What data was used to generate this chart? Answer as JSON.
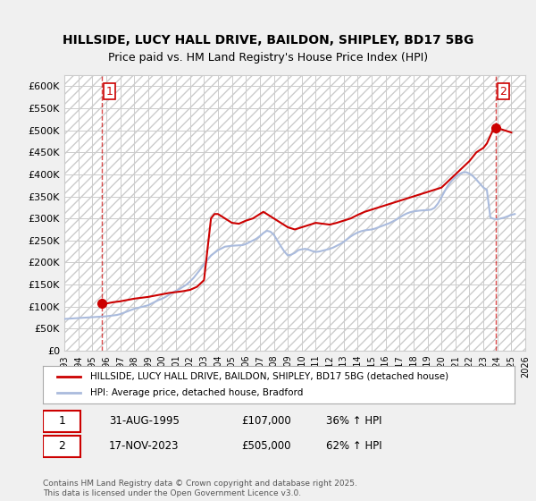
{
  "title_line1": "HILLSIDE, LUCY HALL DRIVE, BAILDON, SHIPLEY, BD17 5BG",
  "title_line2": "Price paid vs. HM Land Registry's House Price Index (HPI)",
  "ylabel": "",
  "ylim": [
    0,
    625000
  ],
  "yticks": [
    0,
    50000,
    100000,
    150000,
    200000,
    250000,
    300000,
    350000,
    400000,
    450000,
    500000,
    550000,
    600000
  ],
  "ytick_labels": [
    "£0",
    "£50K",
    "£100K",
    "£150K",
    "£200K",
    "£250K",
    "£300K",
    "£350K",
    "£400K",
    "£450K",
    "£500K",
    "£550K",
    "£600K"
  ],
  "background_color": "#f0f0f0",
  "plot_bg_color": "#ffffff",
  "grid_color": "#cccccc",
  "hpi_color": "#aaaadd",
  "price_color": "#cc0000",
  "marker1_date_idx": 0,
  "marker2_date_idx": -1,
  "annotation1_label": "1",
  "annotation2_label": "2",
  "legend_label_price": "HILLSIDE, LUCY HALL DRIVE, BAILDON, SHIPLEY, BD17 5BG (detached house)",
  "legend_label_hpi": "HPI: Average price, detached house, Bradford",
  "note1": "1    31-AUG-1995    £107,000    36% ↑ HPI",
  "note2": "2    17-NOV-2023    £505,000    62% ↑ HPI",
  "footer": "Contains HM Land Registry data © Crown copyright and database right 2025.\nThis data is licensed under the Open Government Licence v3.0.",
  "price_dates": [
    1995.66,
    2023.88
  ],
  "price_values": [
    107000,
    505000
  ],
  "hpi_series_x": [
    1993,
    1993.25,
    1993.5,
    1993.75,
    1994,
    1994.25,
    1994.5,
    1994.75,
    1995,
    1995.25,
    1995.5,
    1995.75,
    1996,
    1996.25,
    1996.5,
    1996.75,
    1997,
    1997.25,
    1997.5,
    1997.75,
    1998,
    1998.25,
    1998.5,
    1998.75,
    1999,
    1999.25,
    1999.5,
    1999.75,
    2000,
    2000.25,
    2000.5,
    2000.75,
    2001,
    2001.25,
    2001.5,
    2001.75,
    2002,
    2002.25,
    2002.5,
    2002.75,
    2003,
    2003.25,
    2003.5,
    2003.75,
    2004,
    2004.25,
    2004.5,
    2004.75,
    2005,
    2005.25,
    2005.5,
    2005.75,
    2006,
    2006.25,
    2006.5,
    2006.75,
    2007,
    2007.25,
    2007.5,
    2007.75,
    2008,
    2008.25,
    2008.5,
    2008.75,
    2009,
    2009.25,
    2009.5,
    2009.75,
    2010,
    2010.25,
    2010.5,
    2010.75,
    2011,
    2011.25,
    2011.5,
    2011.75,
    2012,
    2012.25,
    2012.5,
    2012.75,
    2013,
    2013.25,
    2013.5,
    2013.75,
    2014,
    2014.25,
    2014.5,
    2014.75,
    2015,
    2015.25,
    2015.5,
    2015.75,
    2016,
    2016.25,
    2016.5,
    2016.75,
    2017,
    2017.25,
    2017.5,
    2017.75,
    2018,
    2018.25,
    2018.5,
    2018.75,
    2019,
    2019.25,
    2019.5,
    2019.75,
    2020,
    2020.25,
    2020.5,
    2020.75,
    2021,
    2021.25,
    2021.5,
    2021.75,
    2022,
    2022.25,
    2022.5,
    2022.75,
    2023,
    2023.25,
    2023.5,
    2023.75,
    2024,
    2024.25,
    2024.5,
    2024.75,
    2025,
    2025.25
  ],
  "hpi_series_y": [
    72000,
    72500,
    73000,
    73500,
    74000,
    74500,
    75000,
    75500,
    76000,
    76500,
    77000,
    77500,
    78000,
    79000,
    80000,
    81000,
    83000,
    86000,
    89000,
    92000,
    95000,
    97000,
    99000,
    101000,
    103000,
    107000,
    111000,
    115000,
    118000,
    122000,
    127000,
    132000,
    136000,
    140000,
    145000,
    150000,
    157000,
    165000,
    175000,
    185000,
    196000,
    206000,
    216000,
    222000,
    228000,
    232000,
    236000,
    237000,
    238000,
    238500,
    239000,
    239500,
    242000,
    246000,
    250000,
    254000,
    260000,
    267000,
    272000,
    270000,
    263000,
    250000,
    237000,
    225000,
    216000,
    218000,
    222000,
    228000,
    230000,
    231000,
    229000,
    226000,
    224000,
    225000,
    227000,
    229000,
    231000,
    234000,
    238000,
    242000,
    247000,
    253000,
    259000,
    264000,
    268000,
    271000,
    273000,
    274000,
    275000,
    277000,
    280000,
    283000,
    286000,
    289000,
    293000,
    297000,
    302000,
    307000,
    311000,
    314000,
    316000,
    317000,
    318000,
    318500,
    319000,
    320000,
    324000,
    334000,
    348000,
    363000,
    376000,
    386000,
    394000,
    400000,
    404000,
    405000,
    402000,
    396000,
    388000,
    379000,
    370000,
    365000,
    302000,
    299000,
    298000,
    300000,
    302000,
    305000,
    308000,
    310000
  ],
  "price_series_x": [
    1993,
    1993.5,
    1994,
    1994.5,
    1995,
    1995.5,
    1995.75,
    1996,
    1996.5,
    1997,
    1997.5,
    1998,
    1998.5,
    1999,
    1999.5,
    2000,
    2000.5,
    2001,
    2001.5,
    2002,
    2002.5,
    2003,
    2003.25,
    2003.5,
    2003.75,
    2004,
    2004.25,
    2004.5,
    2004.75,
    2005,
    2005.5,
    2006,
    2006.5,
    2007,
    2007.25,
    2007.5,
    2008,
    2008.5,
    2009,
    2009.5,
    2010,
    2010.5,
    2011,
    2011.5,
    2012,
    2012.5,
    2013,
    2013.5,
    2014,
    2014.5,
    2015,
    2015.5,
    2016,
    2016.5,
    2017,
    2017.5,
    2018,
    2018.5,
    2019,
    2019.5,
    2020,
    2020.5,
    2021,
    2021.5,
    2022,
    2022.5,
    2023,
    2023.25,
    2023.75,
    2024,
    2024.5,
    2025
  ],
  "price_series_y": [
    null,
    null,
    null,
    null,
    null,
    null,
    107000,
    107000,
    110000,
    112000,
    115000,
    118000,
    120000,
    122000,
    125000,
    128000,
    131000,
    133000,
    135000,
    138000,
    145000,
    160000,
    230000,
    300000,
    310000,
    310000,
    305000,
    300000,
    295000,
    290000,
    288000,
    295000,
    300000,
    310000,
    315000,
    310000,
    300000,
    290000,
    280000,
    275000,
    280000,
    285000,
    290000,
    288000,
    286000,
    290000,
    295000,
    300000,
    308000,
    315000,
    320000,
    325000,
    330000,
    335000,
    340000,
    345000,
    350000,
    355000,
    360000,
    365000,
    370000,
    385000,
    400000,
    415000,
    430000,
    450000,
    460000,
    470000,
    505000,
    505000,
    500000,
    495000
  ],
  "xlim_min": 1993,
  "xlim_max": 2026,
  "xtick_years": [
    1993,
    1994,
    1995,
    1996,
    1997,
    1998,
    1999,
    2000,
    2001,
    2002,
    2003,
    2004,
    2005,
    2006,
    2007,
    2008,
    2009,
    2010,
    2011,
    2012,
    2013,
    2014,
    2015,
    2016,
    2017,
    2018,
    2019,
    2020,
    2021,
    2022,
    2023,
    2024,
    2025,
    2026
  ]
}
